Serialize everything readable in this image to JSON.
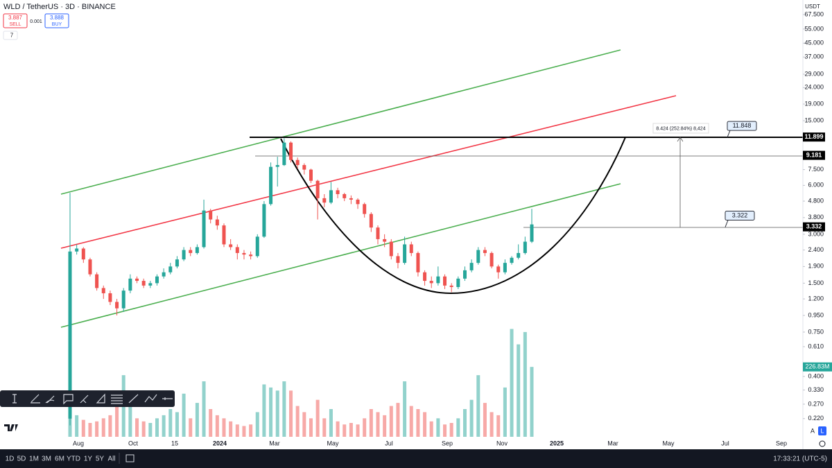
{
  "header": {
    "symbol": "WLD / TetherUS · 3D · BINANCE",
    "sell_price": "3.887",
    "sell_label": "SELL",
    "spread": "0.001",
    "buy_price": "3.888",
    "buy_label": "BUY",
    "indicator_count": "7",
    "currency": "USDT"
  },
  "chart_data": {
    "type": "candlestick",
    "log_scale": true,
    "grid": false,
    "up_color": "#26a69a",
    "down_color": "#ef5350",
    "open": [
      0.22,
      2.35,
      2.45,
      2.1,
      1.7,
      1.4,
      1.3,
      1.15,
      1.05,
      1.35,
      1.6,
      1.55,
      1.45,
      1.5,
      1.65,
      1.75,
      1.9,
      2.1,
      2.4,
      2.3,
      2.5,
      4.2,
      3.7,
      3.4,
      2.6,
      2.5,
      2.3,
      2.25,
      2.2,
      2.9,
      4.6,
      7.8,
      8.0,
      11.0,
      8.6,
      8.0,
      7.5,
      6.4,
      5.0,
      4.7,
      5.6,
      5.3,
      5.0,
      4.9,
      4.6,
      4.0,
      3.3,
      2.8,
      2.7,
      2.2,
      2.0,
      2.6,
      2.3,
      1.75,
      1.55,
      1.5,
      1.65,
      1.45,
      1.42,
      1.6,
      1.8,
      2.0,
      2.4,
      2.3,
      1.9,
      1.75,
      2.0,
      2.15,
      2.3,
      2.7
    ],
    "high": [
      5.4,
      2.6,
      2.5,
      2.15,
      1.75,
      1.45,
      1.35,
      1.2,
      1.4,
      1.7,
      1.65,
      1.6,
      1.55,
      1.7,
      1.85,
      2.0,
      2.2,
      2.5,
      2.5,
      2.6,
      4.9,
      4.3,
      3.9,
      3.5,
      2.8,
      2.6,
      2.4,
      2.35,
      3.0,
      4.8,
      8.3,
      9.0,
      11.7,
      11.2,
      8.9,
      8.2,
      7.6,
      6.5,
      5.3,
      6.3,
      5.8,
      5.4,
      5.2,
      5.0,
      4.7,
      4.1,
      3.4,
      3.0,
      2.8,
      2.3,
      2.9,
      2.7,
      2.35,
      1.8,
      1.65,
      1.9,
      1.7,
      1.5,
      1.65,
      1.9,
      2.1,
      2.5,
      2.5,
      2.35,
      1.95,
      2.1,
      2.2,
      2.6,
      2.9,
      4.3
    ],
    "low": [
      0.2,
      2.25,
      2.0,
      1.65,
      1.35,
      1.2,
      1.1,
      0.95,
      1.0,
      1.3,
      1.5,
      1.4,
      1.4,
      1.45,
      1.6,
      1.7,
      1.85,
      2.05,
      2.2,
      2.25,
      2.45,
      3.5,
      3.2,
      2.5,
      2.4,
      2.1,
      2.1,
      2.1,
      2.15,
      2.85,
      4.5,
      5.9,
      7.9,
      8.3,
      7.6,
      7.0,
      6.2,
      3.7,
      4.4,
      4.6,
      5.0,
      4.8,
      4.6,
      4.3,
      3.8,
      3.1,
      2.6,
      2.5,
      2.1,
      1.85,
      1.95,
      2.2,
      1.65,
      1.45,
      1.4,
      1.45,
      1.38,
      1.32,
      1.38,
      1.55,
      1.75,
      1.95,
      2.2,
      1.85,
      1.6,
      1.7,
      1.95,
      2.1,
      2.25,
      2.65
    ],
    "close": [
      2.35,
      2.45,
      2.1,
      1.7,
      1.4,
      1.3,
      1.15,
      1.05,
      1.35,
      1.6,
      1.55,
      1.45,
      1.5,
      1.65,
      1.75,
      1.9,
      2.1,
      2.4,
      2.3,
      2.5,
      4.2,
      3.7,
      3.4,
      2.6,
      2.5,
      2.3,
      2.25,
      2.2,
      2.9,
      4.6,
      7.8,
      8.0,
      11.0,
      8.6,
      8.0,
      7.5,
      6.4,
      5.0,
      4.7,
      5.6,
      5.3,
      5.0,
      4.9,
      4.6,
      4.0,
      3.3,
      2.8,
      2.7,
      2.2,
      2.0,
      2.6,
      2.3,
      1.75,
      1.55,
      1.5,
      1.65,
      1.45,
      1.42,
      1.6,
      1.8,
      2.0,
      2.4,
      2.3,
      1.9,
      1.75,
      2.0,
      2.15,
      2.3,
      2.7,
      3.45
    ],
    "volume": {
      "values": [
        60,
        70,
        55,
        45,
        50,
        60,
        70,
        120,
        200,
        110,
        60,
        50,
        45,
        60,
        70,
        90,
        80,
        140,
        60,
        110,
        180,
        90,
        70,
        60,
        50,
        40,
        35,
        40,
        80,
        170,
        160,
        150,
        180,
        150,
        100,
        80,
        60,
        120,
        60,
        90,
        50,
        40,
        45,
        40,
        60,
        90,
        80,
        70,
        100,
        110,
        180,
        100,
        90,
        80,
        50,
        60,
        40,
        45,
        60,
        90,
        120,
        200,
        110,
        80,
        70,
        160,
        350,
        300,
        340,
        226.83
      ],
      "ylim": [
        0,
        360
      ],
      "last_label": "226.83M"
    },
    "ylim": [
      0.17,
      83
    ],
    "yticks": [
      {
        "value": 67.5,
        "label": "67.500"
      },
      {
        "value": 55,
        "label": "55.000"
      },
      {
        "value": 45,
        "label": "45.000"
      },
      {
        "value": 37,
        "label": "37.000"
      },
      {
        "value": 29,
        "label": "29.000"
      },
      {
        "value": 24,
        "label": "24.000"
      },
      {
        "value": 19,
        "label": "19.000"
      },
      {
        "value": 15,
        "label": "15.000"
      },
      {
        "value": 7.5,
        "label": "7.500"
      },
      {
        "value": 6,
        "label": "6.000"
      },
      {
        "value": 4.8,
        "label": "4.800"
      },
      {
        "value": 3.8,
        "label": "3.800"
      },
      {
        "value": 3,
        "label": "3.000"
      },
      {
        "value": 2.4,
        "label": "2.400"
      },
      {
        "value": 1.9,
        "label": "1.900"
      },
      {
        "value": 1.5,
        "label": "1.500"
      },
      {
        "value": 1.2,
        "label": "1.200"
      },
      {
        "value": 0.95,
        "label": "0.950"
      },
      {
        "value": 0.75,
        "label": "0.750"
      },
      {
        "value": 0.61,
        "label": "0.610"
      },
      {
        "value": 0.4,
        "label": "0.400"
      },
      {
        "value": 0.33,
        "label": "0.330"
      },
      {
        "value": 0.27,
        "label": "0.270"
      },
      {
        "value": 0.22,
        "label": "0.220"
      }
    ],
    "x_labels": [
      "Aug",
      "Oct",
      "15",
      "2024",
      "Mar",
      "May",
      "Jul",
      "Sep",
      "Nov",
      "2025",
      "Mar",
      "May",
      "Jul",
      "Sep"
    ],
    "price_badges": [
      11.899,
      9.181,
      3.332
    ],
    "callouts": [
      11.848,
      3.322
    ],
    "measure_label": "8.424 (252.84%) 8,424"
  },
  "footer": {
    "ranges": [
      "1D",
      "5D",
      "1M",
      "3M",
      "6M",
      "YTD",
      "1Y",
      "5Y",
      "All"
    ],
    "clock": "17:33:21 (UTC-5)",
    "scale_buttons": [
      "A",
      "L"
    ]
  }
}
